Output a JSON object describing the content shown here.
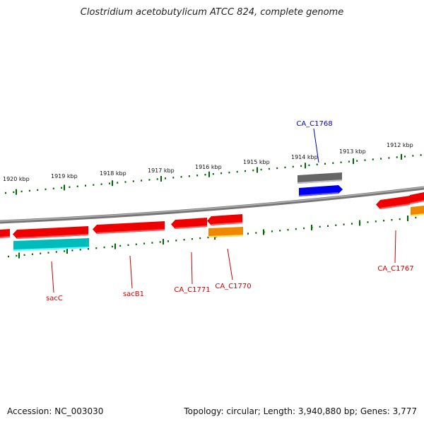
{
  "title": "Clostridium acetobutylicum ATCC 824, complete genome",
  "footer": {
    "accession": "Accession: NC_003030",
    "summary": "Topology: circular; Length: 3,940,880 bp; Genes: 3,777"
  },
  "colors": {
    "cds_red": "#ee0000",
    "gene_gray": "#666666",
    "gene_blue": "#0000ee",
    "gene_orange": "#ee8800",
    "gene_cyan": "#00bbbb",
    "tick_green": "#006600",
    "backbone": "#888888",
    "label_red": "#cc0000",
    "label_blue": "#0000cc"
  },
  "scale": {
    "tick_labels": [
      "1920 kbp",
      "1919 kbp",
      "1918 kbp",
      "1917 kbp",
      "1916 kbp",
      "1915 kbp",
      "1914 kbp",
      "1913 kbp",
      "1912 kbp"
    ]
  },
  "genes": [
    {
      "label": "sacC",
      "color": "label_red"
    },
    {
      "label": "sacB1",
      "color": "label_red"
    },
    {
      "label": "CA_C1771",
      "color": "label_red"
    },
    {
      "label": "CA_C1770",
      "color": "label_red"
    },
    {
      "label": "CA_C1768",
      "color": "label_blue"
    },
    {
      "label": "CA_C1767",
      "color": "label_red"
    }
  ]
}
